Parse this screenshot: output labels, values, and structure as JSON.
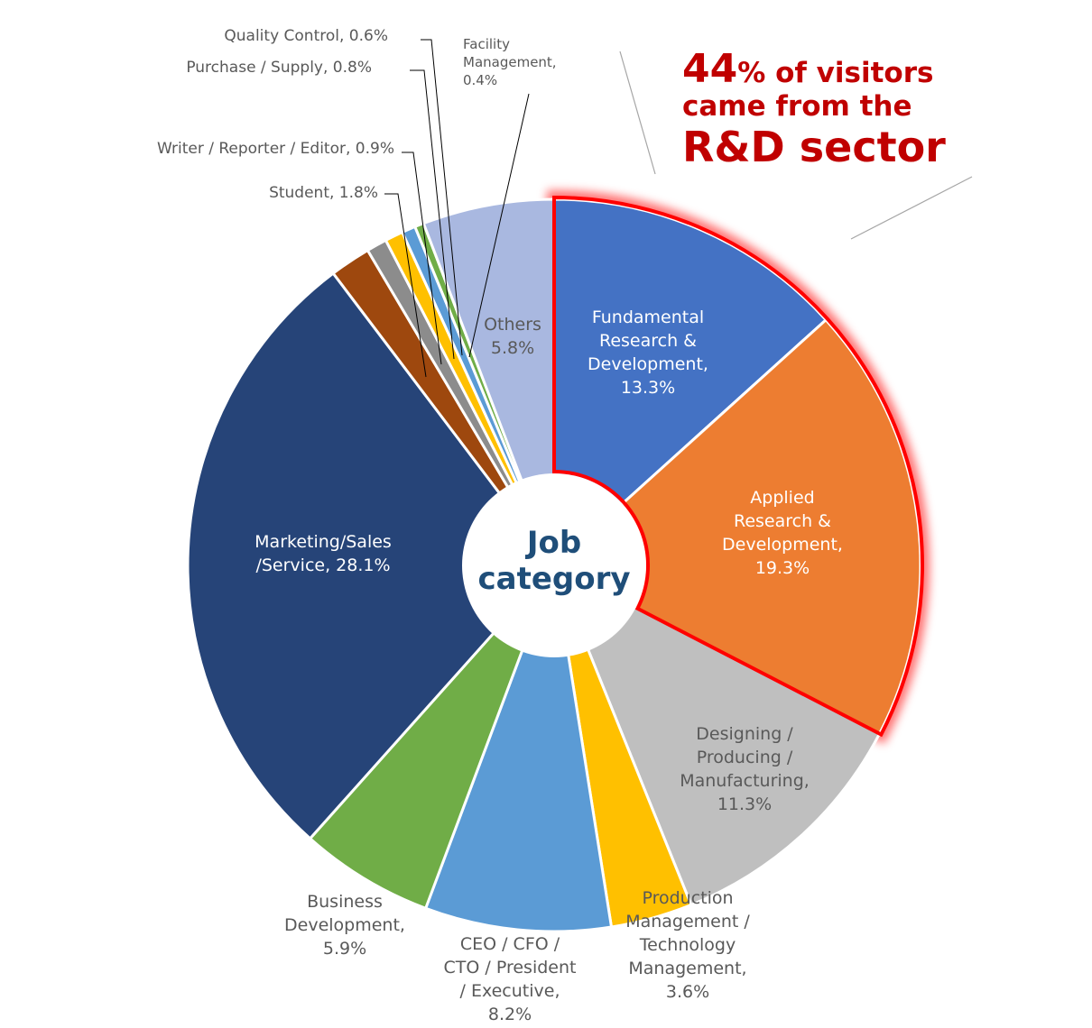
{
  "chart_data": {
    "type": "pie",
    "title": "Job category",
    "slices": [
      {
        "label": [
          "Fundamental",
          "Research &",
          "Development,",
          "13.3%"
        ],
        "value": 13.3,
        "color": "#4472c4",
        "text_color": "#ffffff"
      },
      {
        "label": [
          "Applied",
          "Research &",
          "Development,",
          "19.3%"
        ],
        "value": 19.3,
        "color": "#ed7d31",
        "text_color": "#ffffff"
      },
      {
        "label": [
          "Designing /",
          "Producing /",
          "Manufacturing,",
          "11.3%"
        ],
        "value": 11.3,
        "color": "#bfbfbf",
        "text_color": "#595959"
      },
      {
        "label": [
          "Production",
          "Management /",
          "Technology",
          "Management,",
          "3.6%"
        ],
        "value": 3.6,
        "color": "#ffc000",
        "text_color": "#595959"
      },
      {
        "label": [
          "CEO / CFO /",
          "CTO / President",
          "/ Executive,",
          "8.2%"
        ],
        "value": 8.2,
        "color": "#5b9bd5",
        "text_color": "#595959"
      },
      {
        "label": [
          "Business",
          "Development,",
          "5.9%"
        ],
        "value": 5.9,
        "color": "#70ad47",
        "text_color": "#595959"
      },
      {
        "label": [
          "Marketing/Sales",
          "/Service, 28.1%"
        ],
        "value": 28.1,
        "color": "#264478",
        "text_color": "#ffffff"
      },
      {
        "label": [
          "Student, 1.8%"
        ],
        "value": 1.8,
        "color": "#9e480e",
        "text_color": "#595959"
      },
      {
        "label": [
          "Writer / Reporter / Editor, 0.9%"
        ],
        "value": 0.9,
        "color": "#8c8c8c",
        "text_color": "#595959"
      },
      {
        "label": [
          "Purchase / Supply, 0.8%"
        ],
        "value": 0.8,
        "color": "#ffc000",
        "text_color": "#595959"
      },
      {
        "label": [
          "Quality Control, 0.6%"
        ],
        "value": 0.6,
        "color": "#5b9bd5",
        "text_color": "#595959"
      },
      {
        "label": [
          "Facility",
          "Management,",
          "0.4%"
        ],
        "value": 0.4,
        "color": "#70ad47",
        "text_color": "#595959"
      },
      {
        "label": [
          "Others",
          "5.8%"
        ],
        "value": 5.8,
        "color": "#a9b8e0",
        "text_color": "#595959"
      }
    ],
    "center_label": [
      "Job",
      "category"
    ],
    "highlight_color": "#ff0000"
  },
  "callout": {
    "number": "44",
    "line1_rest": "% of visitors",
    "line2": "came from the",
    "line3": "R&D sector",
    "color": "#c00000"
  }
}
